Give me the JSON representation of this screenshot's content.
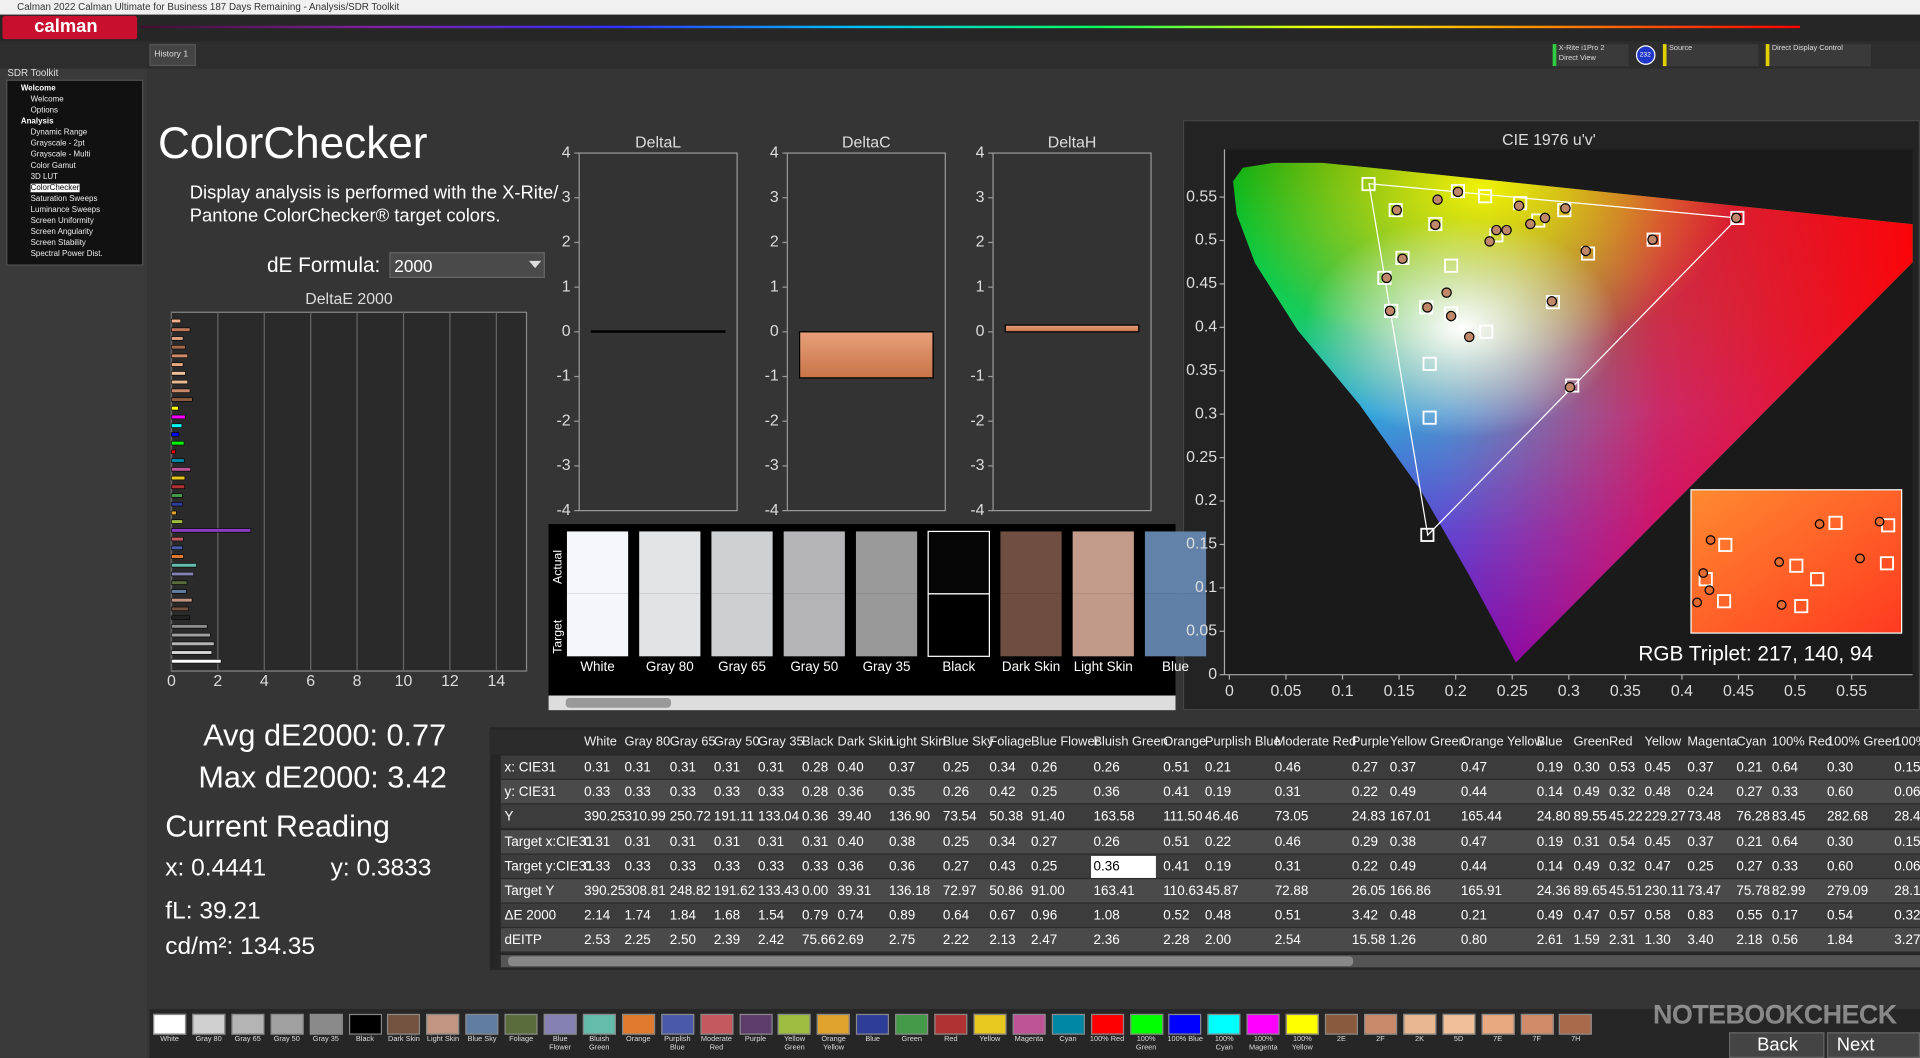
{
  "window": {
    "title": "Calman 2022 Calman Ultimate for Business 187 Days Remaining  - Analysis/SDR Toolkit",
    "logo": "calman"
  },
  "toolbar": {
    "tab": "History 1",
    "meter": [
      "X-Rite i1Pro 2",
      "Direct View"
    ],
    "meter_badge": "232",
    "source": "Source",
    "display_control": "Direct Display Control"
  },
  "sidebar": {
    "title": "SDR Toolkit",
    "tree": [
      {
        "label": "Welcome",
        "children": [
          "Welcome",
          "Options"
        ]
      },
      {
        "label": "Analysis",
        "children": [
          "Dynamic Range",
          "Grayscale - 2pt",
          "Grayscale - Multi",
          "Color Gamut",
          "3D LUT",
          "ColorChecker",
          "Saturation Sweeps",
          "Luminance Sweeps",
          "Screen Uniformity",
          "Screen Angularity",
          "Screen Stability",
          "Spectral Power Dist."
        ]
      }
    ]
  },
  "page": {
    "title": "ColorChecker",
    "description": [
      "Display analysis is performed with the X-Rite/",
      "Pantone ColorChecker® target colors."
    ],
    "formula_label": "dE Formula:",
    "formula_value": "2000"
  },
  "stats": {
    "avg": "Avg dE2000: 0.77",
    "max": "Max dE2000: 3.42",
    "current_heading": "Current Reading",
    "x": "x: 0.4441",
    "y": "y: 0.3833",
    "fl": "fL: 39.21",
    "cdm2": "cd/m²: 134.35"
  },
  "deltae_chart": {
    "type": "bar",
    "orientation": "horizontal",
    "title": "DeltaE 2000",
    "xlim": [
      0,
      15.3
    ],
    "xticks": [
      0,
      2,
      4,
      6,
      8,
      10,
      12,
      14
    ],
    "grid": true,
    "values": [
      2.14,
      1.74,
      1.84,
      1.68,
      1.54,
      0.79,
      0.74,
      0.89,
      0.64,
      0.67,
      0.96,
      1.08,
      0.52,
      0.48,
      0.51,
      3.42,
      0.48,
      0.21,
      0.49,
      0.47,
      0.57,
      0.58,
      0.83,
      0.55,
      0.17,
      0.54,
      0.32,
      0.45,
      0.6,
      0.3,
      0.9,
      0.8,
      0.7,
      0.6,
      0.5,
      0.7,
      0.6,
      0.5,
      0.8,
      0.4
    ],
    "colors": [
      "#ffffff",
      "#d0d0d0",
      "#b4b4b4",
      "#a0a0a0",
      "#8a8a8a",
      "#222222",
      "#73523f",
      "#c29482",
      "#5e7da0",
      "#5a6c3c",
      "#8580b2",
      "#63bdaa",
      "#e07a2e",
      "#4a5aa8",
      "#c45a60",
      "#8a3cc0",
      "#9dbc40",
      "#e0a32e",
      "#2e3d96",
      "#449a48",
      "#b03232",
      "#e6c81e",
      "#bc5496",
      "#0087a6",
      "#ff0000",
      "#00ff00",
      "#0000ff",
      "#00ffff",
      "#ff00ff",
      "#ffff00",
      "#8a5a3c",
      "#c88a6a",
      "#e8b890",
      "#f0c098",
      "#e8a880",
      "#d08a68",
      "#a86a4a",
      "#e0a080",
      "#c07858",
      "#f0b088"
    ]
  },
  "delta_charts": [
    {
      "type": "bar",
      "title": "DeltaL",
      "values": [
        0.02
      ],
      "color": "#d98c5f",
      "ylim": [
        -4,
        4
      ],
      "yticks": [
        -4,
        -3,
        -2,
        -1,
        0,
        1,
        2,
        3,
        4
      ]
    },
    {
      "type": "bar",
      "title": "DeltaC",
      "values": [
        -1.03
      ],
      "color": "#d98c5f",
      "ylim": [
        -4,
        4
      ],
      "yticks": [
        -4,
        -3,
        -2,
        -1,
        0,
        1,
        2,
        3,
        4
      ]
    },
    {
      "type": "bar",
      "title": "DeltaH",
      "values": [
        0.15
      ],
      "color": "#d98c5f",
      "ylim": [
        -4,
        4
      ],
      "yticks": [
        -4,
        -3,
        -2,
        -1,
        0,
        1,
        2,
        3,
        4
      ]
    }
  ],
  "swatches": {
    "row_labels": [
      "Actual",
      "Target"
    ],
    "names": [
      "White",
      "Gray 80",
      "Gray 65",
      "Gray 50",
      "Gray 35",
      "Black",
      "Dark Skin",
      "Light Skin",
      "Blue"
    ],
    "actual_colors": [
      "#f5f7fb",
      "#e3e4e6",
      "#cfd0d2",
      "#b5b5b7",
      "#9a9a9b",
      "#050505",
      "#6e4f42",
      "#c39b8b",
      "#6282aa"
    ],
    "target_colors": [
      "#f4f6fa",
      "#e2e3e5",
      "#cecfd1",
      "#b4b4b6",
      "#99999a",
      "#000000",
      "#6d4e41",
      "#c29a8a",
      "#6080a8"
    ]
  },
  "cie_chart": {
    "type": "scatter",
    "title": "CIE 1976 u'v'",
    "xlim": [
      0,
      0.605
    ],
    "ylim": [
      0,
      0.6
    ],
    "xticks": [
      0,
      0.05,
      0.1,
      0.15,
      0.2,
      0.25,
      0.3,
      0.35,
      0.4,
      0.45,
      0.5,
      0.55
    ],
    "yticks": [
      0,
      0.05,
      0.1,
      0.15,
      0.2,
      0.25,
      0.3,
      0.35,
      0.4,
      0.45,
      0.5,
      0.55
    ],
    "target_color": "#ffffff",
    "actual_color": "#c08868",
    "targets": {
      "x": [
        0.123,
        0.147,
        0.182,
        0.153,
        0.137,
        0.143,
        0.174,
        0.196,
        0.196,
        0.177,
        0.177,
        0.175,
        0.227,
        0.286,
        0.303,
        0.317,
        0.375,
        0.449,
        0.202,
        0.226,
        0.257,
        0.296,
        0.273,
        0.236
      ],
      "y": [
        0.565,
        0.535,
        0.519,
        0.48,
        0.457,
        0.419,
        0.423,
        0.471,
        0.416,
        0.358,
        0.296,
        0.161,
        0.395,
        0.429,
        0.333,
        0.485,
        0.501,
        0.526,
        0.557,
        0.551,
        0.543,
        0.535,
        0.523,
        0.506
      ]
    },
    "actuals": {
      "x": [
        0.148,
        0.182,
        0.184,
        0.202,
        0.153,
        0.139,
        0.192,
        0.175,
        0.196,
        0.212,
        0.142,
        0.285,
        0.301,
        0.315,
        0.374,
        0.448,
        0.297,
        0.256,
        0.23,
        0.245,
        0.266,
        0.279,
        0.236
      ],
      "y": [
        0.535,
        0.518,
        0.547,
        0.556,
        0.479,
        0.457,
        0.44,
        0.423,
        0.413,
        0.389,
        0.419,
        0.43,
        0.331,
        0.488,
        0.501,
        0.526,
        0.537,
        0.54,
        0.499,
        0.512,
        0.519,
        0.526,
        0.512
      ]
    },
    "readout": "RGB Triplet: 217, 140, 94"
  },
  "table": {
    "headers": [
      "White",
      "Gray 80",
      "Gray 65",
      "Gray 50",
      "Gray 35",
      "Black",
      "Dark Skin",
      "Light Skin",
      "Blue Sky",
      "Foliage",
      "Blue Flower",
      "Bluish Green",
      "Orange",
      "Purplish Blue",
      "Moderate Red",
      "Purple",
      "Yellow Green",
      "Orange Yellow",
      "Blue",
      "Green",
      "Red",
      "Yellow",
      "Magenta",
      "Cyan",
      "100% Red",
      "100% Green",
      "100%"
    ],
    "row_labels": [
      "x: CIE31",
      "y: CIE31",
      "Y",
      "Target x:CIE31",
      "Target y:CIE31",
      "Target Y",
      "ΔE 2000",
      "dEITP"
    ],
    "rows": [
      [
        "0.31",
        "0.31",
        "0.31",
        "0.31",
        "0.31",
        "0.28",
        "0.40",
        "0.37",
        "0.25",
        "0.34",
        "0.26",
        "0.26",
        "0.51",
        "0.21",
        "0.46",
        "0.27",
        "0.37",
        "0.47",
        "0.19",
        "0.30",
        "0.53",
        "0.45",
        "0.37",
        "0.21",
        "0.64",
        "0.30",
        "0.15"
      ],
      [
        "0.33",
        "0.33",
        "0.33",
        "0.33",
        "0.33",
        "0.28",
        "0.36",
        "0.35",
        "0.26",
        "0.42",
        "0.25",
        "0.36",
        "0.41",
        "0.19",
        "0.31",
        "0.22",
        "0.49",
        "0.44",
        "0.14",
        "0.49",
        "0.32",
        "0.48",
        "0.24",
        "0.27",
        "0.33",
        "0.60",
        "0.06"
      ],
      [
        "390.25",
        "310.99",
        "250.72",
        "191.11",
        "133.04",
        "0.36",
        "39.40",
        "136.90",
        "73.54",
        "50.38",
        "91.40",
        "163.58",
        "111.50",
        "46.46",
        "73.05",
        "24.83",
        "167.01",
        "165.44",
        "24.80",
        "89.55",
        "45.22",
        "229.27",
        "73.48",
        "76.28",
        "83.45",
        "282.68",
        "28.4"
      ],
      [
        "0.31",
        "0.31",
        "0.31",
        "0.31",
        "0.31",
        "0.31",
        "0.40",
        "0.38",
        "0.25",
        "0.34",
        "0.27",
        "0.26",
        "0.51",
        "0.22",
        "0.46",
        "0.29",
        "0.38",
        "0.47",
        "0.19",
        "0.31",
        "0.54",
        "0.45",
        "0.37",
        "0.21",
        "0.64",
        "0.30",
        "0.15"
      ],
      [
        "0.33",
        "0.33",
        "0.33",
        "0.33",
        "0.33",
        "0.33",
        "0.36",
        "0.36",
        "0.27",
        "0.43",
        "0.25",
        "0.36",
        "0.41",
        "0.19",
        "0.31",
        "0.22",
        "0.49",
        "0.44",
        "0.14",
        "0.49",
        "0.32",
        "0.47",
        "0.25",
        "0.27",
        "0.33",
        "0.60",
        "0.06"
      ],
      [
        "390.25",
        "308.81",
        "248.82",
        "191.62",
        "133.43",
        "0.00",
        "39.31",
        "136.18",
        "72.97",
        "50.86",
        "91.00",
        "163.41",
        "110.63",
        "45.87",
        "72.88",
        "26.05",
        "166.86",
        "165.91",
        "24.36",
        "89.65",
        "45.51",
        "230.11",
        "73.47",
        "75.78",
        "82.99",
        "279.09",
        "28.1"
      ],
      [
        "2.14",
        "1.74",
        "1.84",
        "1.68",
        "1.54",
        "0.79",
        "0.74",
        "0.89",
        "0.64",
        "0.67",
        "0.96",
        "1.08",
        "0.52",
        "0.48",
        "0.51",
        "3.42",
        "0.48",
        "0.21",
        "0.49",
        "0.47",
        "0.57",
        "0.58",
        "0.83",
        "0.55",
        "0.17",
        "0.54",
        "0.32"
      ],
      [
        "2.53",
        "2.25",
        "2.50",
        "2.39",
        "2.42",
        "75.66",
        "2.69",
        "2.75",
        "2.22",
        "2.13",
        "2.47",
        "2.36",
        "2.28",
        "2.00",
        "2.54",
        "15.58",
        "1.26",
        "0.80",
        "2.61",
        "1.59",
        "2.31",
        "1.30",
        "3.40",
        "2.18",
        "0.56",
        "1.84",
        "3.27"
      ]
    ]
  },
  "palette": {
    "labels": [
      "White",
      "Gray 80",
      "Gray 65",
      "Gray 50",
      "Gray 35",
      "Black",
      "Dark Skin",
      "Light Skin",
      "Blue Sky",
      "Foliage",
      "Blue Flower",
      "Bluish Green",
      "Orange",
      "Purplish Blue",
      "Moderate Red",
      "Purple",
      "Yellow Green",
      "Orange Yellow",
      "Blue",
      "Green",
      "Red",
      "Yellow",
      "Magenta",
      "Cyan",
      "100% Red",
      "100% Green",
      "100% Blue",
      "100% Cyan",
      "100% Magenta",
      "100% Yellow",
      "2E",
      "2F",
      "2K",
      "5D",
      "7E",
      "7F",
      "7H"
    ],
    "colors": [
      "#ffffff",
      "#d0d0d0",
      "#b4b4b4",
      "#a0a0a0",
      "#8a8a8a",
      "#000000",
      "#73523f",
      "#c29482",
      "#5e7da0",
      "#5a6c3c",
      "#8580b2",
      "#63bdaa",
      "#e07a2e",
      "#4a5aa8",
      "#c45a60",
      "#5c3c6a",
      "#9dbc40",
      "#e0a32e",
      "#2e3d96",
      "#449a48",
      "#b03232",
      "#e6c81e",
      "#bc5496",
      "#0087a6",
      "#ff0000",
      "#00ff00",
      "#0000ff",
      "#00ffff",
      "#ff00ff",
      "#ffff00",
      "#8a5a3c",
      "#c88a6a",
      "#e8b890",
      "#f0c098",
      "#e8a880",
      "#d08a68",
      "#a86a4a"
    ]
  },
  "nav": {
    "back": "Back",
    "next": "Next"
  },
  "watermark": "NOTEBOOKCHECK"
}
